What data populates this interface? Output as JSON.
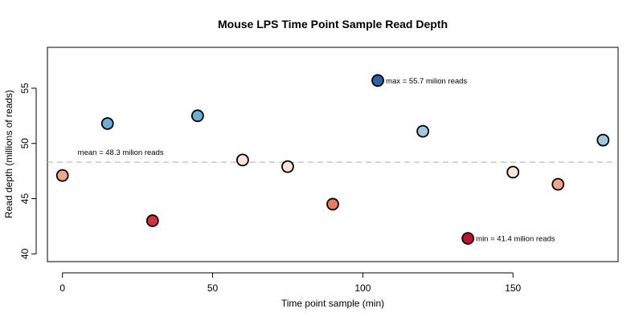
{
  "chart_data": {
    "type": "scatter",
    "title": "Mouse LPS Time Point Sample Read Depth",
    "xlabel": "Time point sample (min)",
    "ylabel": "Read depth (millions of reads)",
    "xlim": [
      -5,
      185
    ],
    "ylim": [
      39.3,
      58.7
    ],
    "xticks": [
      0,
      50,
      100,
      150
    ],
    "yticks": [
      40,
      45,
      50,
      55
    ],
    "grid": false,
    "points": [
      {
        "x": 0,
        "y": 47.1,
        "color": "#f4a582"
      },
      {
        "x": 15,
        "y": 51.8,
        "color": "#6baed6"
      },
      {
        "x": 30,
        "y": 43.0,
        "color": "#d6303b"
      },
      {
        "x": 45,
        "y": 52.5,
        "color": "#6baed6"
      },
      {
        "x": 60,
        "y": 48.5,
        "color": "#fbe3d6"
      },
      {
        "x": 75,
        "y": 47.9,
        "color": "#fbe3d6"
      },
      {
        "x": 90,
        "y": 44.5,
        "color": "#ef7a5e"
      },
      {
        "x": 105,
        "y": 55.7,
        "color": "#2166ac"
      },
      {
        "x": 120,
        "y": 51.1,
        "color": "#9ecae1"
      },
      {
        "x": 135,
        "y": 41.4,
        "color": "#c8102e"
      },
      {
        "x": 150,
        "y": 47.4,
        "color": "#fbe3d6"
      },
      {
        "x": 165,
        "y": 46.3,
        "color": "#f4a582"
      },
      {
        "x": 180,
        "y": 50.3,
        "color": "#9ecae1"
      }
    ],
    "mean": {
      "value": 48.3,
      "label": "mean = 48.3 milion reads",
      "color": "#bdbdbd"
    },
    "max_label": "max = 55.7 milion reads",
    "min_label": "min = 41.4 milion reads"
  }
}
